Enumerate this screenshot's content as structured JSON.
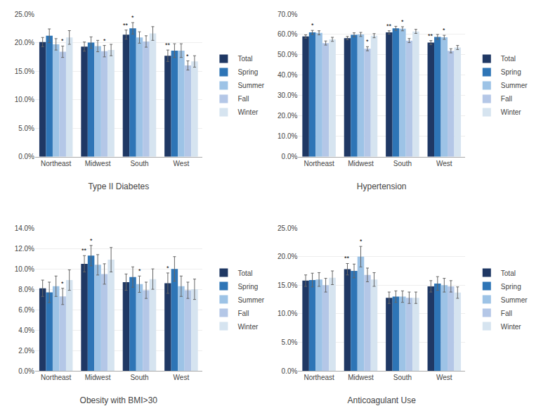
{
  "chart_data": [
    {
      "type": "bar",
      "xlabel": "Type II Diabetes",
      "categories": [
        "Northeast",
        "Midwest",
        "South",
        "West"
      ],
      "series": [
        {
          "name": "Total",
          "color": "#1f3864",
          "values": [
            0.201,
            0.193,
            0.214,
            0.177
          ],
          "errors": [
            0.008,
            0.008,
            0.008,
            0.01
          ]
        },
        {
          "name": "Spring",
          "color": "#2e75b6",
          "values": [
            0.212,
            0.2,
            0.225,
            0.186
          ],
          "errors": [
            0.012,
            0.01,
            0.01,
            0.012
          ]
        },
        {
          "name": "Summer",
          "color": "#9dc3e6",
          "values": [
            0.197,
            0.194,
            0.209,
            0.186
          ],
          "errors": [
            0.01,
            0.01,
            0.01,
            0.012
          ]
        },
        {
          "name": "Fall",
          "color": "#b4c7e7",
          "values": [
            0.184,
            0.185,
            0.202,
            0.16
          ],
          "errors": [
            0.01,
            0.01,
            0.01,
            0.008
          ]
        },
        {
          "name": "Winter",
          "color": "#d6e4f0",
          "values": [
            0.209,
            0.187,
            0.216,
            0.167
          ],
          "errors": [
            0.012,
            0.01,
            0.012,
            0.01
          ]
        }
      ],
      "annotations": [
        {
          "category": "Northeast",
          "series": "Fall",
          "text": "*"
        },
        {
          "category": "Midwest",
          "series": "Fall",
          "text": "*"
        },
        {
          "category": "South",
          "series": "Total",
          "text": "**"
        },
        {
          "category": "South",
          "series": "Spring",
          "text": "*"
        },
        {
          "category": "West",
          "series": "Total",
          "text": "**"
        },
        {
          "category": "West",
          "series": "Fall",
          "text": "*"
        }
      ],
      "ylim": [
        0,
        0.25
      ],
      "yticks": [
        {
          "value": 0.0,
          "label": "0.0%"
        },
        {
          "value": 0.05,
          "label": "5.0%"
        },
        {
          "value": 0.1,
          "label": "10.0%"
        },
        {
          "value": 0.15,
          "label": "15.0%"
        },
        {
          "value": 0.2,
          "label": "20.0%"
        },
        {
          "value": 0.25,
          "label": "25.0%"
        }
      ],
      "grid": true,
      "legend": "right"
    },
    {
      "type": "bar",
      "xlabel": "Hypertension",
      "categories": [
        "Northeast",
        "Midwest",
        "South",
        "West"
      ],
      "series": [
        {
          "name": "Total",
          "color": "#1f3864",
          "values": [
            0.59,
            0.582,
            0.61,
            0.56
          ],
          "errors": [
            0.008,
            0.008,
            0.008,
            0.01
          ]
        },
        {
          "name": "Spring",
          "color": "#2e75b6",
          "values": [
            0.61,
            0.598,
            0.63,
            0.588
          ],
          "errors": [
            0.01,
            0.01,
            0.01,
            0.012
          ]
        },
        {
          "name": "Summer",
          "color": "#9dc3e6",
          "values": [
            0.608,
            0.6,
            0.628,
            0.586
          ],
          "errors": [
            0.01,
            0.01,
            0.01,
            0.01
          ]
        },
        {
          "name": "Fall",
          "color": "#b4c7e7",
          "values": [
            0.558,
            0.53,
            0.57,
            0.52
          ],
          "errors": [
            0.01,
            0.01,
            0.01,
            0.01
          ]
        },
        {
          "name": "Winter",
          "color": "#d6e4f0",
          "values": [
            0.576,
            0.594,
            0.615,
            0.536
          ],
          "errors": [
            0.01,
            0.01,
            0.01,
            0.01
          ]
        }
      ],
      "annotations": [
        {
          "category": "Northeast",
          "series": "Spring",
          "text": "*"
        },
        {
          "category": "Midwest",
          "series": "Fall",
          "text": "*"
        },
        {
          "category": "South",
          "series": "Total",
          "text": "**"
        },
        {
          "category": "South",
          "series": "Summer",
          "text": "*"
        },
        {
          "category": "West",
          "series": "Total",
          "text": "**"
        },
        {
          "category": "West",
          "series": "Summer",
          "text": "*"
        }
      ],
      "ylim": [
        0,
        0.7
      ],
      "yticks": [
        {
          "value": 0.0,
          "label": "0.0%"
        },
        {
          "value": 0.1,
          "label": "10.0%"
        },
        {
          "value": 0.2,
          "label": "20.0%"
        },
        {
          "value": 0.3,
          "label": "30.0%"
        },
        {
          "value": 0.4,
          "label": "40.0%"
        },
        {
          "value": 0.5,
          "label": "50.0%"
        },
        {
          "value": 0.6,
          "label": "60.0%"
        },
        {
          "value": 0.7,
          "label": "70.0%"
        }
      ],
      "grid": true,
      "legend": "right"
    },
    {
      "type": "bar",
      "xlabel": "Obesity with BMI>30",
      "categories": [
        "Northeast",
        "Midwest",
        "South",
        "West"
      ],
      "series": [
        {
          "name": "Total",
          "color": "#1f3864",
          "values": [
            0.081,
            0.105,
            0.087,
            0.086
          ],
          "errors": [
            0.008,
            0.008,
            0.008,
            0.01
          ]
        },
        {
          "name": "Spring",
          "color": "#2e75b6",
          "values": [
            0.077,
            0.113,
            0.092,
            0.1
          ],
          "errors": [
            0.01,
            0.01,
            0.01,
            0.012
          ]
        },
        {
          "name": "Summer",
          "color": "#9dc3e6",
          "values": [
            0.083,
            0.104,
            0.085,
            0.083
          ],
          "errors": [
            0.01,
            0.01,
            0.008,
            0.01
          ]
        },
        {
          "name": "Fall",
          "color": "#b4c7e7",
          "values": [
            0.073,
            0.095,
            0.079,
            0.079
          ],
          "errors": [
            0.008,
            0.01,
            0.008,
            0.008
          ]
        },
        {
          "name": "Winter",
          "color": "#d6e4f0",
          "values": [
            0.089,
            0.109,
            0.09,
            0.08
          ],
          "errors": [
            0.01,
            0.012,
            0.01,
            0.01
          ]
        }
      ],
      "annotations": [
        {
          "category": "Northeast",
          "series": "Fall",
          "text": "*"
        },
        {
          "category": "Midwest",
          "series": "Total",
          "text": "**"
        },
        {
          "category": "Midwest",
          "series": "Spring",
          "text": "*"
        },
        {
          "category": "South",
          "series": "Summer",
          "text": "*"
        },
        {
          "category": "West",
          "series": "Total",
          "text": "*"
        }
      ],
      "ylim": [
        0,
        0.14
      ],
      "yticks": [
        {
          "value": 0.0,
          "label": "0.0%"
        },
        {
          "value": 0.02,
          "label": "2.0%"
        },
        {
          "value": 0.04,
          "label": "4.0%"
        },
        {
          "value": 0.06,
          "label": "6.0%"
        },
        {
          "value": 0.08,
          "label": "8.0%"
        },
        {
          "value": 0.1,
          "label": "10.0%"
        },
        {
          "value": 0.12,
          "label": "12.0%"
        },
        {
          "value": 0.14,
          "label": "14.0%"
        }
      ],
      "grid": true,
      "legend": "right"
    },
    {
      "type": "bar",
      "xlabel": "Anticoagulant Use",
      "categories": [
        "Northeast",
        "Midwest",
        "South",
        "West"
      ],
      "series": [
        {
          "name": "Total",
          "color": "#1f3864",
          "values": [
            0.158,
            0.178,
            0.128,
            0.148
          ],
          "errors": [
            0.01,
            0.01,
            0.01,
            0.01
          ]
        },
        {
          "name": "Spring",
          "color": "#2e75b6",
          "values": [
            0.159,
            0.175,
            0.13,
            0.153
          ],
          "errors": [
            0.012,
            0.012,
            0.01,
            0.012
          ]
        },
        {
          "name": "Summer",
          "color": "#9dc3e6",
          "values": [
            0.16,
            0.2,
            0.13,
            0.15
          ],
          "errors": [
            0.012,
            0.018,
            0.01,
            0.012
          ]
        },
        {
          "name": "Fall",
          "color": "#b4c7e7",
          "values": [
            0.15,
            0.168,
            0.128,
            0.148
          ],
          "errors": [
            0.012,
            0.012,
            0.01,
            0.01
          ]
        },
        {
          "name": "Winter",
          "color": "#d6e4f0",
          "values": [
            0.163,
            0.16,
            0.128,
            0.137
          ],
          "errors": [
            0.012,
            0.012,
            0.01,
            0.01
          ]
        }
      ],
      "annotations": [
        {
          "category": "Midwest",
          "series": "Total",
          "text": "**"
        },
        {
          "category": "Midwest",
          "series": "Summer",
          "text": "*"
        }
      ],
      "ylim": [
        0,
        0.25
      ],
      "yticks": [
        {
          "value": 0.0,
          "label": "0.0%"
        },
        {
          "value": 0.05,
          "label": "5.0%"
        },
        {
          "value": 0.1,
          "label": "10.0%"
        },
        {
          "value": 0.15,
          "label": "15.0%"
        },
        {
          "value": 0.2,
          "label": "20.0%"
        },
        {
          "value": 0.25,
          "label": "25.0%"
        }
      ],
      "grid": true,
      "legend": "right"
    }
  ]
}
